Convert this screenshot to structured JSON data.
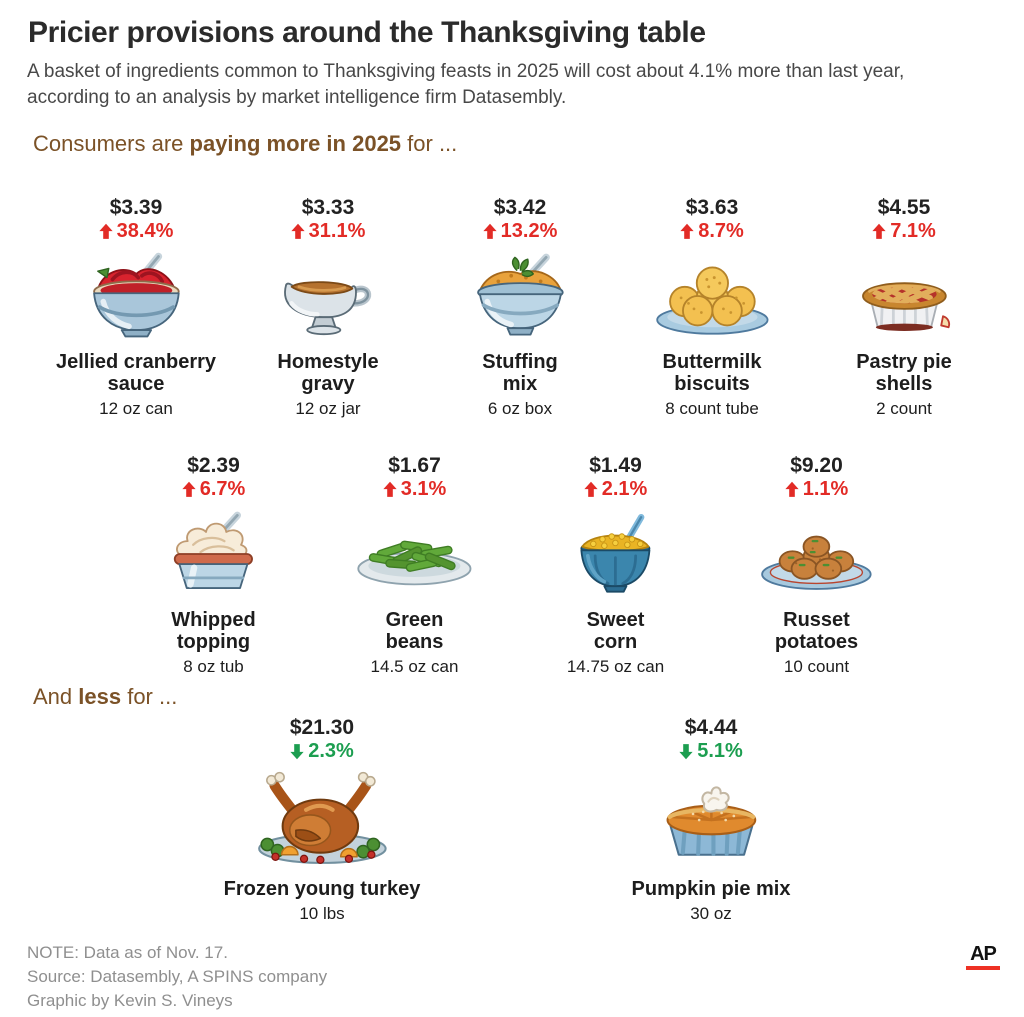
{
  "header": {
    "title": "Pricier provisions around the Thanksgiving table",
    "subtitle": "A basket of ingredients common to Thanksgiving feasts in 2025 will cost about 4.1% more than last year, according to an analysis by market intelligence firm Datasembly."
  },
  "sections": {
    "more": {
      "prefix": "Consumers are ",
      "bold": "paying more in 2025",
      "suffix": " for ..."
    },
    "less": {
      "prefix": "And ",
      "bold": "less",
      "suffix": " for ..."
    }
  },
  "items": [
    {
      "row": 1,
      "price": "$3.39",
      "direction": "up",
      "change": "38.4%",
      "name_lines": [
        "Jellied cranberry",
        "sauce"
      ],
      "size": "12 oz can",
      "icon": "cranberry-sauce-bowl-icon"
    },
    {
      "row": 1,
      "price": "$3.33",
      "direction": "up",
      "change": "31.1%",
      "name_lines": [
        "Homestyle",
        "gravy"
      ],
      "size": "12 oz jar",
      "icon": "gravy-boat-icon"
    },
    {
      "row": 1,
      "price": "$3.42",
      "direction": "up",
      "change": "13.2%",
      "name_lines": [
        "Stuffing",
        "mix"
      ],
      "size": "6 oz box",
      "icon": "stuffing-bowl-icon"
    },
    {
      "row": 1,
      "price": "$3.63",
      "direction": "up",
      "change": "8.7%",
      "name_lines": [
        "Buttermilk",
        "biscuits"
      ],
      "size": "8 count tube",
      "icon": "biscuits-plate-icon"
    },
    {
      "row": 1,
      "price": "$4.55",
      "direction": "up",
      "change": "7.1%",
      "name_lines": [
        "Pastry pie",
        "shells"
      ],
      "size": "2 count",
      "icon": "lattice-pie-icon"
    },
    {
      "row": 2,
      "price": "$2.39",
      "direction": "up",
      "change": "6.7%",
      "name_lines": [
        "Whipped",
        "topping"
      ],
      "size": "8 oz tub",
      "icon": "whipped-topping-tub-icon"
    },
    {
      "row": 2,
      "price": "$1.67",
      "direction": "up",
      "change": "3.1%",
      "name_lines": [
        "Green",
        "beans"
      ],
      "size": "14.5 oz can",
      "icon": "green-beans-plate-icon"
    },
    {
      "row": 2,
      "price": "$1.49",
      "direction": "up",
      "change": "2.1%",
      "name_lines": [
        "Sweet",
        "corn"
      ],
      "size": "14.75 oz can",
      "icon": "sweet-corn-bowl-icon"
    },
    {
      "row": 2,
      "price": "$9.20",
      "direction": "up",
      "change": "1.1%",
      "name_lines": [
        "Russet",
        "potatoes"
      ],
      "size": "10 count",
      "icon": "potatoes-plate-icon"
    },
    {
      "row": 3,
      "price": "$21.30",
      "direction": "down",
      "change": "2.3%",
      "name_lines": [
        "Frozen young turkey"
      ],
      "size": "10 lbs",
      "icon": "roast-turkey-icon"
    },
    {
      "row": 3,
      "price": "$4.44",
      "direction": "down",
      "change": "5.1%",
      "name_lines": [
        "Pumpkin pie mix"
      ],
      "size": "30 oz",
      "icon": "pumpkin-pie-icon"
    }
  ],
  "footer": {
    "note": "NOTE: Data as of Nov. 17.",
    "source": "Source: Datasembly, A SPINS company",
    "credit": "Graphic by Kevin S. Vineys",
    "logo": "AP"
  },
  "colors": {
    "increase": "#e22b26",
    "decrease": "#1c9e50",
    "heading_brown": "#7b5227",
    "ap_red": "#ee3124"
  },
  "chart_data": {
    "type": "table",
    "title": "Pricier provisions around the Thanksgiving table",
    "subtitle_basket_change_pct": 4.1,
    "note": "Data as of Nov. 17",
    "source": "Datasembly, A SPINS company",
    "columns": [
      "item",
      "package_size",
      "price_usd",
      "pct_change_vs_last_year"
    ],
    "rows": [
      [
        "Jellied cranberry sauce",
        "12 oz can",
        3.39,
        38.4
      ],
      [
        "Homestyle gravy",
        "12 oz jar",
        3.33,
        31.1
      ],
      [
        "Stuffing mix",
        "6 oz box",
        3.42,
        13.2
      ],
      [
        "Buttermilk biscuits",
        "8 count tube",
        3.63,
        8.7
      ],
      [
        "Pastry pie shells",
        "2 count",
        4.55,
        7.1
      ],
      [
        "Whipped topping",
        "8 oz tub",
        2.39,
        6.7
      ],
      [
        "Green beans",
        "14.5 oz can",
        1.67,
        3.1
      ],
      [
        "Sweet corn",
        "14.75 oz can",
        1.49,
        2.1
      ],
      [
        "Russet potatoes",
        "10 count",
        9.2,
        1.1
      ],
      [
        "Frozen young turkey",
        "10 lbs",
        21.3,
        -2.3
      ],
      [
        "Pumpkin pie mix",
        "30 oz",
        4.44,
        -5.1
      ]
    ]
  }
}
